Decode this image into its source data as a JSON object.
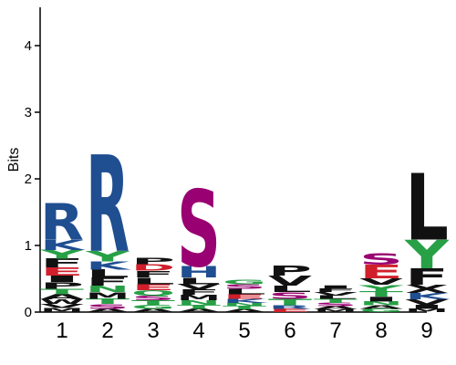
{
  "chart_data": {
    "type": "sequence-logo",
    "ylabel": "Bits",
    "ylim": [
      0,
      4.6
    ],
    "yticks": [
      "0",
      "1",
      "2",
      "3",
      "4"
    ],
    "positions": [
      {
        "label": "1",
        "letters": [
          {
            "c": "M",
            "h": 0.06
          },
          {
            "c": "V",
            "h": 0.06
          },
          {
            "c": "W",
            "h": 0.07
          },
          {
            "c": "A",
            "h": 0.08
          },
          {
            "c": "T",
            "h": 0.08
          },
          {
            "c": "P",
            "h": 0.1
          },
          {
            "c": "I",
            "h": 0.1
          },
          {
            "c": "E",
            "h": 0.12
          },
          {
            "c": "F",
            "h": 0.13
          },
          {
            "c": "Y",
            "h": 0.13
          },
          {
            "c": "K",
            "h": 0.15
          },
          {
            "c": "R",
            "h": 0.55
          }
        ]
      },
      {
        "label": "2",
        "letters": [
          {
            "c": "A",
            "h": 0.05
          },
          {
            "c": "S",
            "h": 0.07
          },
          {
            "c": "T",
            "h": 0.08
          },
          {
            "c": "M",
            "h": 0.1
          },
          {
            "c": "N",
            "h": 0.1
          },
          {
            "c": "F",
            "h": 0.12
          },
          {
            "c": "L",
            "h": 0.12
          },
          {
            "c": "K",
            "h": 0.12
          },
          {
            "c": "Y",
            "h": 0.16
          },
          {
            "c": "R",
            "h": 1.45
          }
        ]
      },
      {
        "label": "3",
        "letters": [
          {
            "c": "A",
            "h": 0.05
          },
          {
            "c": "G",
            "h": 0.06
          },
          {
            "c": "T",
            "h": 0.07
          },
          {
            "c": "S",
            "h": 0.07
          },
          {
            "c": "Q",
            "h": 0.08
          },
          {
            "c": "E",
            "h": 0.09
          },
          {
            "c": "L",
            "h": 0.1
          },
          {
            "c": "F",
            "h": 0.1
          },
          {
            "c": "D",
            "h": 0.1
          },
          {
            "c": "P",
            "h": 0.1
          }
        ]
      },
      {
        "label": "4",
        "letters": [
          {
            "c": "A",
            "h": 0.05
          },
          {
            "c": "T",
            "h": 0.06
          },
          {
            "c": "N",
            "h": 0.07
          },
          {
            "c": "M",
            "h": 0.08
          },
          {
            "c": "F",
            "h": 0.08
          },
          {
            "c": "V",
            "h": 0.08
          },
          {
            "c": "L",
            "h": 0.1
          },
          {
            "c": "H",
            "h": 0.17
          },
          {
            "c": "S",
            "h": 1.15
          }
        ]
      },
      {
        "label": "5",
        "letters": [
          {
            "c": "A",
            "h": 0.04
          },
          {
            "c": "T",
            "h": 0.05
          },
          {
            "c": "N",
            "h": 0.05
          },
          {
            "c": "K",
            "h": 0.06
          },
          {
            "c": "E",
            "h": 0.07
          },
          {
            "c": "L",
            "h": 0.08
          },
          {
            "c": "S",
            "h": 0.07
          },
          {
            "c": "G",
            "h": 0.07
          }
        ]
      },
      {
        "label": "6",
        "letters": [
          {
            "c": "E",
            "h": 0.05
          },
          {
            "c": "R",
            "h": 0.05
          },
          {
            "c": "T",
            "h": 0.1
          },
          {
            "c": "S",
            "h": 0.1
          },
          {
            "c": "L",
            "h": 0.1
          },
          {
            "c": "V",
            "h": 0.15
          },
          {
            "c": "P",
            "h": 0.15
          }
        ]
      },
      {
        "label": "7",
        "letters": [
          {
            "c": "M",
            "h": 0.04
          },
          {
            "c": "A",
            "h": 0.05
          },
          {
            "c": "S",
            "h": 0.05
          },
          {
            "c": "T",
            "h": 0.06
          },
          {
            "c": "L",
            "h": 0.05
          },
          {
            "c": "V",
            "h": 0.05
          },
          {
            "c": "F",
            "h": 0.05
          },
          {
            "c": "I",
            "h": 0.05
          }
        ]
      },
      {
        "label": "8",
        "letters": [
          {
            "c": "G",
            "h": 0.05
          },
          {
            "c": "A",
            "h": 0.05
          },
          {
            "c": "N",
            "h": 0.06
          },
          {
            "c": "I",
            "h": 0.07
          },
          {
            "c": "T",
            "h": 0.08
          },
          {
            "c": "Y",
            "h": 0.1
          },
          {
            "c": "V",
            "h": 0.1
          },
          {
            "c": "E",
            "h": 0.2
          },
          {
            "c": "S",
            "h": 0.17
          }
        ]
      },
      {
        "label": "9",
        "letters": [
          {
            "c": "M",
            "h": 0.05
          },
          {
            "c": "I",
            "h": 0.06
          },
          {
            "c": "V",
            "h": 0.08
          },
          {
            "c": "K",
            "h": 0.1
          },
          {
            "c": "X",
            "h": 0.12
          },
          {
            "c": "F",
            "h": 0.25
          },
          {
            "c": "Y",
            "h": 0.43
          },
          {
            "c": "L",
            "h": 1.0
          }
        ]
      }
    ],
    "residue_colors": {
      "R": "#1f4e91",
      "K": "#1f4e91",
      "H": "#1f4e91",
      "S": "#990071",
      "T": "#27a046",
      "Y": "#27a046",
      "G": "#27a046",
      "C": "#27a046",
      "Q": "#27a046",
      "N": "#27a046",
      "D": "#d01f2b",
      "E": "#d01f2b",
      "A": "#111111",
      "V": "#111111",
      "L": "#111111",
      "I": "#111111",
      "P": "#111111",
      "F": "#111111",
      "M": "#111111",
      "W": "#111111",
      "X": "#111111"
    }
  }
}
